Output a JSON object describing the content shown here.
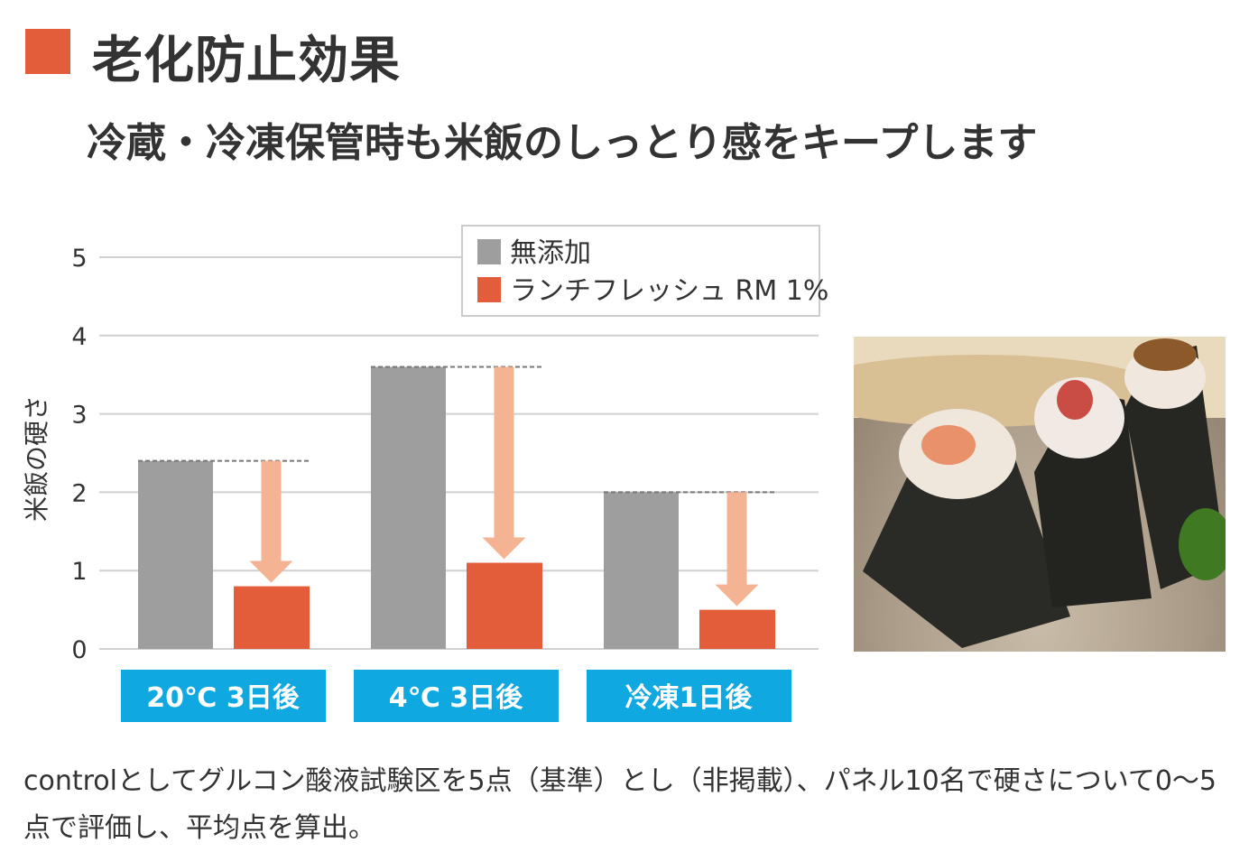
{
  "header": {
    "title": "老化防止効果",
    "subtitle": "冷蔵・冷凍保管時も米飯のしっとり感をキープします"
  },
  "colors": {
    "accent": "#e35d3a",
    "control": "#9d9e9d",
    "product": "#e35d3a",
    "arrow": "#f4b393",
    "category_bg": "#0fa8e0"
  },
  "chart_data": {
    "type": "bar",
    "ylabel": "米飯の硬さ",
    "ylim": [
      0,
      5
    ],
    "yticks": [
      "0",
      "1",
      "2",
      "3",
      "4",
      "5"
    ],
    "grid": true,
    "legend_placement": "top-right",
    "categories": [
      "20℃ 3日後",
      "4℃ 3日後",
      "冷凍1日後"
    ],
    "series": [
      {
        "name": "無添加",
        "values": [
          2.4,
          3.6,
          2.0
        ]
      },
      {
        "name": "ランチフレッシュ RM 1%",
        "values": [
          0.8,
          1.1,
          0.5
        ]
      }
    ]
  },
  "photo": {
    "description_icon": "onigiri-photo"
  },
  "footnote": "controlとしてグルコン酸液試験区を5点（基準）とし（非掲載）、パネル10名で硬さについて0〜5点で評価し、平均点を算出。"
}
